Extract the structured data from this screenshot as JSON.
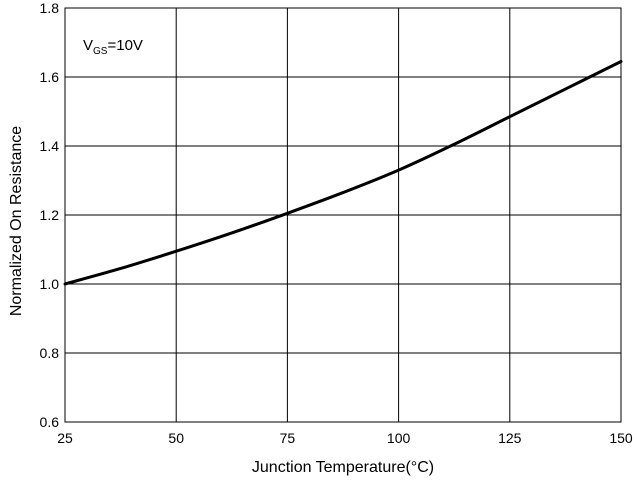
{
  "chart_data": {
    "type": "line",
    "title": "",
    "xlabel": "Junction Temperature(°C)",
    "ylabel": "Normalized On Resistance",
    "xlim": [
      25,
      150
    ],
    "ylim": [
      0.6,
      1.8
    ],
    "x_ticks": [
      "25",
      "50",
      "75",
      "100",
      "125",
      "150"
    ],
    "y_ticks": [
      "0.6",
      "0.8",
      "1.0",
      "1.2",
      "1.4",
      "1.6",
      "1.8"
    ],
    "grid": true,
    "annotation": {
      "main": "V",
      "subscript": "GS",
      "rest": "=10V"
    },
    "series": [
      {
        "color": "#000000",
        "x": [
          25,
          37.5,
          50,
          62.5,
          75,
          87.5,
          100,
          112.5,
          125,
          137.5,
          150
        ],
        "y": [
          1.0,
          1.045,
          1.095,
          1.148,
          1.205,
          1.265,
          1.33,
          1.405,
          1.485,
          1.565,
          1.645
        ]
      }
    ]
  }
}
